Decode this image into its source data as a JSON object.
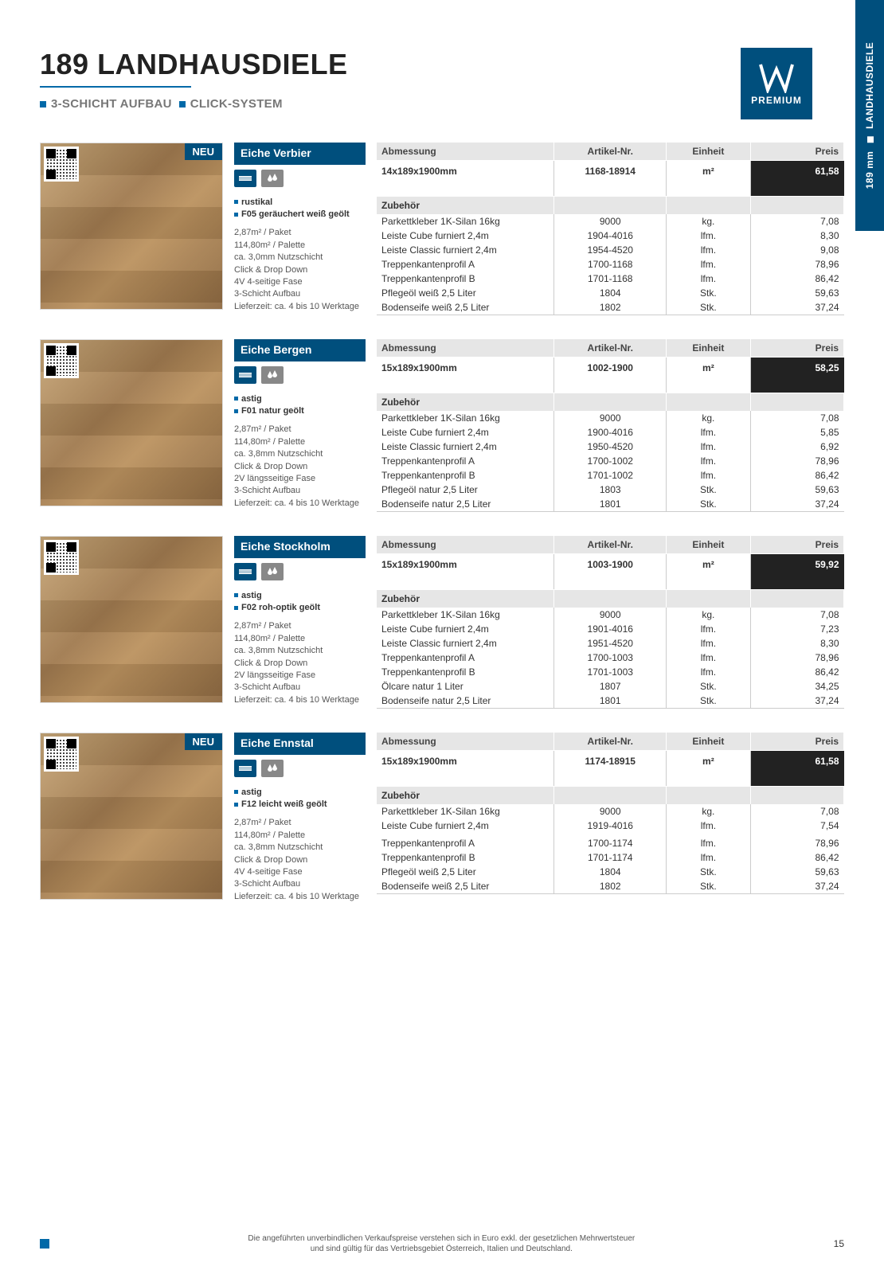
{
  "sidetab": {
    "mm": "189 mm",
    "cat": "LANDHAUSDIELE"
  },
  "header": {
    "title": "189 LANDHAUSDIELE",
    "sub1": "3-SCHICHT AUFBAU",
    "sub2": "CLICK-SYSTEM",
    "logo_text": "PREMIUM"
  },
  "labels": {
    "abmessung": "Abmessung",
    "artikel": "Artikel-Nr.",
    "einheit": "Einheit",
    "preis": "Preis",
    "zubehoer": "Zubehör",
    "neu": "NEU"
  },
  "products": [
    {
      "neu": true,
      "name": "Eiche Verbier",
      "bullets": [
        "rustikal",
        "F05 geräuchert weiß geölt"
      ],
      "specs": [
        "2,87m² / Paket",
        "114,80m² / Palette",
        "ca. 3,0mm Nutzschicht",
        "Click & Drop Down",
        "4V 4-seitige Fase",
        "3-Schicht Aufbau",
        "Lieferzeit: ca. 4 bis 10 Werktage"
      ],
      "main": {
        "abm": "14x189x1900mm",
        "art": "1168-18914",
        "ein": "m²",
        "preis": "61,58"
      },
      "acc": [
        {
          "n": "Parkettkleber 1K-Silan 16kg",
          "a": "9000",
          "e": "kg.",
          "p": "7,08"
        },
        {
          "n": "Leiste Cube furniert 2,4m",
          "a": "1904-4016",
          "e": "lfm.",
          "p": "8,30"
        },
        {
          "n": "Leiste Classic furniert 2,4m",
          "a": "1954-4520",
          "e": "lfm.",
          "p": "9,08"
        },
        {
          "n": "Treppenkantenprofil A",
          "a": "1700-1168",
          "e": "lfm.",
          "p": "78,96"
        },
        {
          "n": "Treppenkantenprofil B",
          "a": "1701-1168",
          "e": "lfm.",
          "p": "86,42"
        },
        {
          "n": "Pflegeöl weiß 2,5 Liter",
          "a": "1804",
          "e": "Stk.",
          "p": "59,63"
        },
        {
          "n": "Bodenseife weiß 2,5 Liter",
          "a": "1802",
          "e": "Stk.",
          "p": "37,24"
        }
      ]
    },
    {
      "neu": false,
      "name": "Eiche Bergen",
      "bullets": [
        "astig",
        "F01 natur geölt"
      ],
      "specs": [
        "2,87m² / Paket",
        "114,80m² / Palette",
        "ca. 3,8mm Nutzschicht",
        "Click & Drop Down",
        "2V längsseitige Fase",
        "3-Schicht Aufbau",
        "Lieferzeit: ca. 4 bis 10 Werktage"
      ],
      "main": {
        "abm": "15x189x1900mm",
        "art": "1002-1900",
        "ein": "m²",
        "preis": "58,25"
      },
      "acc": [
        {
          "n": "Parkettkleber 1K-Silan 16kg",
          "a": "9000",
          "e": "kg.",
          "p": "7,08"
        },
        {
          "n": "Leiste Cube furniert 2,4m",
          "a": "1900-4016",
          "e": "lfm.",
          "p": "5,85"
        },
        {
          "n": "Leiste Classic furniert 2,4m",
          "a": "1950-4520",
          "e": "lfm.",
          "p": "6,92"
        },
        {
          "n": "Treppenkantenprofil A",
          "a": "1700-1002",
          "e": "lfm.",
          "p": "78,96"
        },
        {
          "n": "Treppenkantenprofil B",
          "a": "1701-1002",
          "e": "lfm.",
          "p": "86,42"
        },
        {
          "n": "Pflegeöl natur 2,5 Liter",
          "a": "1803",
          "e": "Stk.",
          "p": "59,63"
        },
        {
          "n": "Bodenseife natur 2,5 Liter",
          "a": "1801",
          "e": "Stk.",
          "p": "37,24"
        }
      ]
    },
    {
      "neu": false,
      "name": "Eiche Stockholm",
      "bullets": [
        "astig",
        "F02 roh-optik geölt"
      ],
      "specs": [
        "2,87m² / Paket",
        "114,80m² / Palette",
        "ca. 3,8mm Nutzschicht",
        "Click & Drop Down",
        "2V längsseitige Fase",
        "3-Schicht Aufbau",
        "Lieferzeit: ca. 4 bis 10 Werktage"
      ],
      "main": {
        "abm": "15x189x1900mm",
        "art": "1003-1900",
        "ein": "m²",
        "preis": "59,92"
      },
      "acc": [
        {
          "n": "Parkettkleber 1K-Silan 16kg",
          "a": "9000",
          "e": "kg.",
          "p": "7,08"
        },
        {
          "n": "Leiste Cube furniert 2,4m",
          "a": "1901-4016",
          "e": "lfm.",
          "p": "7,23"
        },
        {
          "n": "Leiste Classic furniert 2,4m",
          "a": "1951-4520",
          "e": "lfm.",
          "p": "8,30"
        },
        {
          "n": "Treppenkantenprofil A",
          "a": "1700-1003",
          "e": "lfm.",
          "p": "78,96"
        },
        {
          "n": "Treppenkantenprofil B",
          "a": "1701-1003",
          "e": "lfm.",
          "p": "86,42"
        },
        {
          "n": "Ölcare natur 1 Liter",
          "a": "1807",
          "e": "Stk.",
          "p": "34,25"
        },
        {
          "n": "Bodenseife natur 2,5 Liter",
          "a": "1801",
          "e": "Stk.",
          "p": "37,24"
        }
      ]
    },
    {
      "neu": true,
      "name": "Eiche Ennstal",
      "bullets": [
        "astig",
        "F12 leicht weiß geölt"
      ],
      "specs": [
        "2,87m² / Paket",
        "114,80m² / Palette",
        "ca. 3,8mm Nutzschicht",
        "Click & Drop Down",
        "4V 4-seitige Fase",
        "3-Schicht Aufbau",
        "Lieferzeit: ca. 4 bis 10 Werktage"
      ],
      "main": {
        "abm": "15x189x1900mm",
        "art": "1174-18915",
        "ein": "m²",
        "preis": "61,58"
      },
      "acc": [
        {
          "n": "Parkettkleber 1K-Silan 16kg",
          "a": "9000",
          "e": "kg.",
          "p": "7,08"
        },
        {
          "n": "Leiste Cube furniert 2,4m",
          "a": "1919-4016",
          "e": "lfm.",
          "p": "7,54"
        },
        {
          "n": " ",
          "a": " ",
          "e": " ",
          "p": " "
        },
        {
          "n": "Treppenkantenprofil A",
          "a": "1700-1174",
          "e": "lfm.",
          "p": "78,96"
        },
        {
          "n": "Treppenkantenprofil B",
          "a": "1701-1174",
          "e": "lfm.",
          "p": "86,42"
        },
        {
          "n": "Pflegeöl weiß 2,5 Liter",
          "a": "1804",
          "e": "Stk.",
          "p": "59,63"
        },
        {
          "n": "Bodenseife weiß 2,5 Liter",
          "a": "1802",
          "e": "Stk.",
          "p": "37,24"
        }
      ]
    }
  ],
  "footer": {
    "line1": "Die angeführten unverbindlichen Verkaufspreise verstehen sich in Euro exkl. der gesetzlichen Mehrwertsteuer",
    "line2": "und sind gültig für das Vertriebsgebiet Österreich, Italien und Deutschland.",
    "page": "15"
  }
}
